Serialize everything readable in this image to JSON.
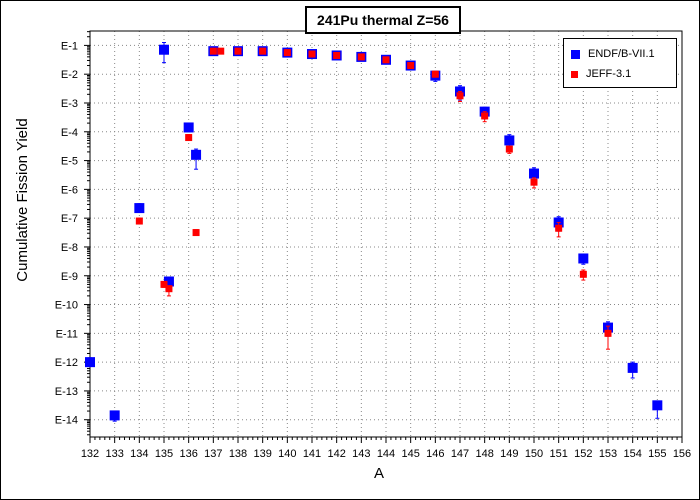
{
  "chart_data": {
    "type": "scatter",
    "title": "241Pu thermal Z=56",
    "xlabel": "A",
    "ylabel": "Cumulative Fission Yield",
    "x_ticks": [
      "132",
      "133",
      "134",
      "135",
      "136",
      "137",
      "138",
      "139",
      "140",
      "141",
      "142",
      "143",
      "144",
      "145",
      "146",
      "147",
      "148",
      "149",
      "150",
      "151",
      "152",
      "153",
      "154",
      "155",
      "156"
    ],
    "y_ticks": [
      "E-1",
      "E-2",
      "E-3",
      "E-4",
      "E-5",
      "E-6",
      "E-7",
      "E-8",
      "E-9",
      "E-10",
      "E-11",
      "E-12",
      "E-13",
      "E-14"
    ],
    "y_scale": "log10",
    "xlim": [
      132,
      156
    ],
    "ylim_exp": [
      -0.5,
      -14.6
    ],
    "grid": true,
    "legend_position": "top-right",
    "series": [
      {
        "name": "ENDF/B-VII.1",
        "color": "#0000ff",
        "marker": "square",
        "points": [
          {
            "x": 132,
            "logy": -12.0,
            "err_lo": 0.15,
            "err_hi": 0.15
          },
          {
            "x": 133,
            "logy": -13.85,
            "err_lo": 0.2,
            "err_hi": 0.1
          },
          {
            "x": 134,
            "logy": -6.65,
            "err_lo": 0.15,
            "err_hi": 0.15
          },
          {
            "x": 135,
            "logy": -1.15,
            "err_lo": 0.45,
            "err_hi": 0.25
          },
          {
            "x": 135.2,
            "logy": -9.2,
            "err_lo": 0.2,
            "err_hi": 0.15
          },
          {
            "x": 136,
            "logy": -3.85,
            "err_lo": 0.15,
            "err_hi": 0.15
          },
          {
            "x": 136.3,
            "logy": -4.8,
            "err_lo": 0.5,
            "err_hi": 0.2
          },
          {
            "x": 137,
            "logy": -1.2,
            "err_lo": 0.05,
            "err_hi": 0.05
          },
          {
            "x": 138,
            "logy": -1.2,
            "err_lo": 0.05,
            "err_hi": 0.05
          },
          {
            "x": 139,
            "logy": -1.2,
            "err_lo": 0.05,
            "err_hi": 0.05
          },
          {
            "x": 140,
            "logy": -1.25,
            "err_lo": 0.05,
            "err_hi": 0.05
          },
          {
            "x": 141,
            "logy": -1.3,
            "err_lo": 0.05,
            "err_hi": 0.05
          },
          {
            "x": 142,
            "logy": -1.35,
            "err_lo": 0.05,
            "err_hi": 0.05
          },
          {
            "x": 143,
            "logy": -1.4,
            "err_lo": 0.05,
            "err_hi": 0.05
          },
          {
            "x": 144,
            "logy": -1.5,
            "err_lo": 0.05,
            "err_hi": 0.05
          },
          {
            "x": 145,
            "logy": -1.7,
            "err_lo": 0.05,
            "err_hi": 0.05
          },
          {
            "x": 146,
            "logy": -2.05,
            "err_lo": 0.2,
            "err_hi": 0.1
          },
          {
            "x": 147,
            "logy": -2.6,
            "err_lo": 0.3,
            "err_hi": 0.2
          },
          {
            "x": 148,
            "logy": -3.3,
            "err_lo": 0.25,
            "err_hi": 0.15
          },
          {
            "x": 149,
            "logy": -4.3,
            "err_lo": 0.25,
            "err_hi": 0.2
          },
          {
            "x": 150,
            "logy": -5.45,
            "err_lo": 0.25,
            "err_hi": 0.2
          },
          {
            "x": 151,
            "logy": -7.15,
            "err_lo": 0.3,
            "err_hi": 0.2
          },
          {
            "x": 152,
            "logy": -8.4,
            "err_lo": 0.2,
            "err_hi": 0.15
          },
          {
            "x": 153,
            "logy": -10.8,
            "err_lo": 0.3,
            "err_hi": 0.2
          },
          {
            "x": 154,
            "logy": -12.2,
            "err_lo": 0.35,
            "err_hi": 0.2
          },
          {
            "x": 155,
            "logy": -13.5,
            "err_lo": 0.45,
            "err_hi": 0.15
          }
        ]
      },
      {
        "name": "JEFF-3.1",
        "color": "#ff0000",
        "marker": "square",
        "points": [
          {
            "x": 134,
            "logy": -7.1,
            "err_lo": 0.1,
            "err_hi": 0.1
          },
          {
            "x": 135,
            "logy": -9.3,
            "err_lo": 0.1,
            "err_hi": 0.1
          },
          {
            "x": 135.2,
            "logy": -9.45,
            "err_lo": 0.25,
            "err_hi": 0.1
          },
          {
            "x": 136,
            "logy": -4.2,
            "err_lo": 0.1,
            "err_hi": 0.1
          },
          {
            "x": 136.3,
            "logy": -7.5,
            "err_lo": 0.1,
            "err_hi": 0.1
          },
          {
            "x": 137,
            "logy": -1.2,
            "err_lo": 0.03,
            "err_hi": 0.03
          },
          {
            "x": 137.3,
            "logy": -1.2,
            "err_lo": 0.03,
            "err_hi": 0.03
          },
          {
            "x": 138,
            "logy": -1.2,
            "err_lo": 0.03,
            "err_hi": 0.03
          },
          {
            "x": 139,
            "logy": -1.2,
            "err_lo": 0.03,
            "err_hi": 0.03
          },
          {
            "x": 140,
            "logy": -1.25,
            "err_lo": 0.03,
            "err_hi": 0.03
          },
          {
            "x": 141,
            "logy": -1.3,
            "err_lo": 0.03,
            "err_hi": 0.03
          },
          {
            "x": 142,
            "logy": -1.35,
            "err_lo": 0.03,
            "err_hi": 0.03
          },
          {
            "x": 143,
            "logy": -1.4,
            "err_lo": 0.03,
            "err_hi": 0.03
          },
          {
            "x": 144,
            "logy": -1.5,
            "err_lo": 0.03,
            "err_hi": 0.03
          },
          {
            "x": 145,
            "logy": -1.7,
            "err_lo": 0.05,
            "err_hi": 0.05
          },
          {
            "x": 146,
            "logy": -2.0,
            "err_lo": 0.1,
            "err_hi": 0.1
          },
          {
            "x": 147,
            "logy": -2.75,
            "err_lo": 0.2,
            "err_hi": 0.15
          },
          {
            "x": 148,
            "logy": -3.45,
            "err_lo": 0.2,
            "err_hi": 0.15
          },
          {
            "x": 149,
            "logy": -4.6,
            "err_lo": 0.15,
            "err_hi": 0.1
          },
          {
            "x": 150,
            "logy": -5.75,
            "err_lo": 0.2,
            "err_hi": 0.15
          },
          {
            "x": 151,
            "logy": -7.35,
            "err_lo": 0.3,
            "err_hi": 0.2
          },
          {
            "x": 152,
            "logy": -8.95,
            "err_lo": 0.2,
            "err_hi": 0.15
          },
          {
            "x": 153,
            "logy": -11.0,
            "err_lo": 0.55,
            "err_hi": 0.25
          }
        ]
      }
    ]
  }
}
